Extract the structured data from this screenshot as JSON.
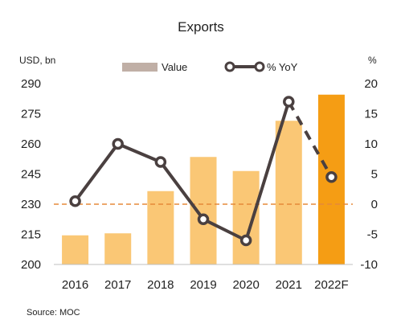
{
  "chart_data": {
    "type": "bar+line",
    "title": "Exports",
    "left_axis_unit": "USD, bn",
    "right_axis_unit": "%",
    "source": "Source: MOC",
    "categories": [
      "2016",
      "2017",
      "2018",
      "2019",
      "2020",
      "2021",
      "2022F"
    ],
    "left_axis": {
      "min": 200,
      "max": 290,
      "ticks": [
        "200",
        "215",
        "230",
        "245",
        "260",
        "275",
        "290"
      ]
    },
    "right_axis": {
      "min": -10,
      "max": 20,
      "ticks": [
        "-10",
        "-5",
        "0",
        "5",
        "10",
        "15",
        "20"
      ]
    },
    "bars": {
      "name": "Value",
      "values": [
        214.5,
        215.5,
        236.5,
        253.5,
        246.5,
        271.5,
        284.5
      ],
      "color": "#FAC775",
      "highlight_color": "#F59D14",
      "highlight_index": 6,
      "legend_color": "#C0AFA6"
    },
    "line": {
      "name": "% YoY",
      "values": [
        0.5,
        10,
        7,
        -2.5,
        -6,
        17,
        4.5
      ],
      "dashed_from_index": 5,
      "color": "#4A4040"
    },
    "reference_line": {
      "axis": "right",
      "value": 0,
      "color": "#E58A3A",
      "style": "dashed"
    },
    "legend": {
      "placement": "top"
    },
    "grid": false
  }
}
